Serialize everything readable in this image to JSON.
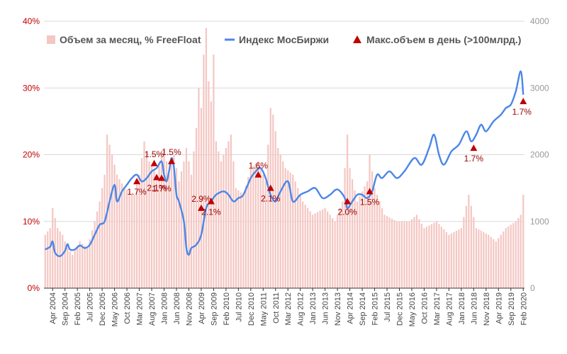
{
  "chart_data": {
    "type": "bar",
    "title": "",
    "legend_position": "top",
    "grid": true,
    "colors": {
      "bars": "#f4c7c3",
      "line": "#4a86e8",
      "markers": "#c00000",
      "left_axis_text": "#c00000",
      "right_axis_text": "#999999"
    },
    "y_left": {
      "ticks": [
        "0%",
        "10%",
        "20%",
        "30%",
        "40%"
      ],
      "lim": [
        0,
        40
      ],
      "unit": "%"
    },
    "y_right": {
      "ticks": [
        "0",
        "1000",
        "2000",
        "3000",
        "4000"
      ],
      "lim": [
        0,
        4000
      ]
    },
    "x": {
      "start": "2004-01",
      "end": "2020-02",
      "tick_every_months": 5,
      "tick_labels": [
        "Apr 2004",
        "Sep 2004",
        "Feb 2005",
        "Jul 2005",
        "Dec 2005",
        "May 2006",
        "Oct 2006",
        "Mar 2007",
        "Aug 2007",
        "Jan 2008",
        "Jun 2008",
        "Nov 2008",
        "Apr 2009",
        "Sep 2009",
        "Feb 2010",
        "Jul 2010",
        "Dec 2010",
        "May 2011",
        "Oct 2011",
        "Mar 2012",
        "Aug 2012",
        "Jan 2013",
        "Jun 2013",
        "Nov 2013",
        "Apr 2014",
        "Sep 2014",
        "Feb 2015",
        "Jul 2015",
        "Dec 2015",
        "May 2016",
        "Oct 2016",
        "Mar 2017",
        "Aug 2017",
        "Jan 2018",
        "Jun 2018",
        "Nov 2018",
        "Apr 2019",
        "Sep 2019",
        "Feb 2020"
      ]
    },
    "series": [
      {
        "name": "Объем за месяц, % FreeFloat",
        "type": "bar",
        "axis": "left",
        "anchors": [
          [
            "2004-01",
            8
          ],
          [
            "2004-03",
            9
          ],
          [
            "2004-04",
            12
          ],
          [
            "2004-06",
            9
          ],
          [
            "2004-08",
            8
          ],
          [
            "2004-10",
            6
          ],
          [
            "2004-12",
            5
          ],
          [
            "2005-03",
            7
          ],
          [
            "2005-06",
            6
          ],
          [
            "2005-09",
            10
          ],
          [
            "2005-11",
            13
          ],
          [
            "2006-01",
            17
          ],
          [
            "2006-02",
            23
          ],
          [
            "2006-04",
            20
          ],
          [
            "2006-06",
            17
          ],
          [
            "2006-09",
            15
          ],
          [
            "2007-01",
            14
          ],
          [
            "2007-03",
            17
          ],
          [
            "2007-05",
            22
          ],
          [
            "2007-07",
            19
          ],
          [
            "2007-10",
            17
          ],
          [
            "2008-01",
            21
          ],
          [
            "2008-03",
            17
          ],
          [
            "2008-05",
            20
          ],
          [
            "2008-07",
            16
          ],
          [
            "2008-09",
            19
          ],
          [
            "2008-10",
            21
          ],
          [
            "2008-12",
            17
          ],
          [
            "2009-02",
            24
          ],
          [
            "2009-03",
            30
          ],
          [
            "2009-04",
            27
          ],
          [
            "2009-05",
            35
          ],
          [
            "2009-06",
            39
          ],
          [
            "2009-07",
            31
          ],
          [
            "2009-08",
            28
          ],
          [
            "2009-09",
            35
          ],
          [
            "2009-10",
            22
          ],
          [
            "2009-12",
            19
          ],
          [
            "2010-02",
            21
          ],
          [
            "2010-04",
            23
          ],
          [
            "2010-06",
            15
          ],
          [
            "2010-09",
            14
          ],
          [
            "2010-12",
            18
          ],
          [
            "2011-03",
            19
          ],
          [
            "2011-06",
            16
          ],
          [
            "2011-08",
            27
          ],
          [
            "2011-09",
            26
          ],
          [
            "2011-11",
            21
          ],
          [
            "2012-02",
            18
          ],
          [
            "2012-05",
            17
          ],
          [
            "2012-09",
            13
          ],
          [
            "2013-01",
            11
          ],
          [
            "2013-06",
            12
          ],
          [
            "2013-10",
            10
          ],
          [
            "2014-01",
            13
          ],
          [
            "2014-03",
            23
          ],
          [
            "2014-04",
            18
          ],
          [
            "2014-07",
            13
          ],
          [
            "2014-11",
            16
          ],
          [
            "2014-12",
            20
          ],
          [
            "2015-02",
            15
          ],
          [
            "2015-06",
            11
          ],
          [
            "2015-11",
            10
          ],
          [
            "2016-04",
            10
          ],
          [
            "2016-07",
            11
          ],
          [
            "2016-10",
            9
          ],
          [
            "2017-03",
            10
          ],
          [
            "2017-08",
            8
          ],
          [
            "2018-01",
            9
          ],
          [
            "2018-04",
            14
          ],
          [
            "2018-07",
            9
          ],
          [
            "2018-12",
            8
          ],
          [
            "2019-03",
            7
          ],
          [
            "2019-07",
            9
          ],
          [
            "2019-11",
            10
          ],
          [
            "2020-01",
            11
          ],
          [
            "2020-02",
            14
          ]
        ]
      },
      {
        "name": "Индекс МосБиржи",
        "type": "line",
        "axis": "right",
        "points": [
          [
            "2004-01",
            580
          ],
          [
            "2004-03",
            620
          ],
          [
            "2004-04",
            700
          ],
          [
            "2004-05",
            530
          ],
          [
            "2004-07",
            480
          ],
          [
            "2004-09",
            560
          ],
          [
            "2004-10",
            660
          ],
          [
            "2004-11",
            580
          ],
          [
            "2005-01",
            580
          ],
          [
            "2005-03",
            640
          ],
          [
            "2005-05",
            600
          ],
          [
            "2005-07",
            650
          ],
          [
            "2005-09",
            800
          ],
          [
            "2005-11",
            950
          ],
          [
            "2006-01",
            1000
          ],
          [
            "2006-03",
            1300
          ],
          [
            "2006-05",
            1550
          ],
          [
            "2006-06",
            1300
          ],
          [
            "2006-08",
            1450
          ],
          [
            "2006-10",
            1550
          ],
          [
            "2006-12",
            1650
          ],
          [
            "2007-02",
            1700
          ],
          [
            "2007-04",
            1600
          ],
          [
            "2007-06",
            1650
          ],
          [
            "2007-08",
            1750
          ],
          [
            "2007-10",
            1800
          ],
          [
            "2007-12",
            1900
          ],
          [
            "2008-01",
            1700
          ],
          [
            "2008-02",
            1600
          ],
          [
            "2008-03",
            1750
          ],
          [
            "2008-04",
            1950
          ],
          [
            "2008-05",
            1800
          ],
          [
            "2008-06",
            1400
          ],
          [
            "2008-07",
            1300
          ],
          [
            "2008-09",
            1000
          ],
          [
            "2008-10",
            600
          ],
          [
            "2008-11",
            500
          ],
          [
            "2008-12",
            600
          ],
          [
            "2009-02",
            650
          ],
          [
            "2009-04",
            800
          ],
          [
            "2009-06",
            1200
          ],
          [
            "2009-08",
            1300
          ],
          [
            "2009-10",
            1400
          ],
          [
            "2010-01",
            1450
          ],
          [
            "2010-03",
            1400
          ],
          [
            "2010-05",
            1300
          ],
          [
            "2010-07",
            1350
          ],
          [
            "2010-09",
            1400
          ],
          [
            "2010-12",
            1650
          ],
          [
            "2011-02",
            1750
          ],
          [
            "2011-04",
            1800
          ],
          [
            "2011-06",
            1650
          ],
          [
            "2011-08",
            1400
          ],
          [
            "2011-10",
            1300
          ],
          [
            "2011-12",
            1450
          ],
          [
            "2012-03",
            1600
          ],
          [
            "2012-05",
            1300
          ],
          [
            "2012-08",
            1400
          ],
          [
            "2012-11",
            1450
          ],
          [
            "2013-02",
            1500
          ],
          [
            "2013-05",
            1350
          ],
          [
            "2013-08",
            1400
          ],
          [
            "2013-11",
            1480
          ],
          [
            "2014-02",
            1350
          ],
          [
            "2014-03",
            1200
          ],
          [
            "2014-05",
            1300
          ],
          [
            "2014-07",
            1400
          ],
          [
            "2014-09",
            1400
          ],
          [
            "2014-11",
            1350
          ],
          [
            "2015-01",
            1450
          ],
          [
            "2015-03",
            1700
          ],
          [
            "2015-05",
            1650
          ],
          [
            "2015-08",
            1750
          ],
          [
            "2015-11",
            1650
          ],
          [
            "2016-02",
            1750
          ],
          [
            "2016-06",
            1950
          ],
          [
            "2016-09",
            1850
          ],
          [
            "2016-12",
            2100
          ],
          [
            "2017-02",
            2300
          ],
          [
            "2017-04",
            2000
          ],
          [
            "2017-06",
            1850
          ],
          [
            "2017-09",
            2050
          ],
          [
            "2017-12",
            2150
          ],
          [
            "2018-03",
            2350
          ],
          [
            "2018-05",
            2200
          ],
          [
            "2018-07",
            2300
          ],
          [
            "2018-09",
            2450
          ],
          [
            "2018-11",
            2350
          ],
          [
            "2019-02",
            2500
          ],
          [
            "2019-05",
            2600
          ],
          [
            "2019-07",
            2700
          ],
          [
            "2019-09",
            2750
          ],
          [
            "2019-11",
            2950
          ],
          [
            "2020-01",
            3250
          ],
          [
            "2020-02",
            2900
          ]
        ]
      },
      {
        "name": "Макс.объем в день (>100млрд.)",
        "type": "scatter",
        "axis": "right",
        "points": [
          {
            "x": "2007-02",
            "y": 1600,
            "label": "1.7%",
            "label_pos": "below"
          },
          {
            "x": "2007-09",
            "y": 1870,
            "label": "1.5%",
            "label_pos": "above"
          },
          {
            "x": "2007-10",
            "y": 1660,
            "label": "2.1%",
            "label_pos": "below"
          },
          {
            "x": "2007-12",
            "y": 1650,
            "label": "1.7%",
            "label_pos": "below"
          },
          {
            "x": "2008-04",
            "y": 1900,
            "label": "1.5%",
            "label_pos": "above"
          },
          {
            "x": "2009-04",
            "y": 1200,
            "label": "2.9%",
            "label_pos": "above"
          },
          {
            "x": "2009-08",
            "y": 1300,
            "label": "2.1%",
            "label_pos": "below"
          },
          {
            "x": "2011-03",
            "y": 1700,
            "label": "1.6%",
            "label_pos": "above"
          },
          {
            "x": "2011-08",
            "y": 1500,
            "label": "2.1%",
            "label_pos": "below"
          },
          {
            "x": "2014-03",
            "y": 1300,
            "label": "2.0%",
            "label_pos": "below"
          },
          {
            "x": "2014-12",
            "y": 1450,
            "label": "1.5%",
            "label_pos": "below"
          },
          {
            "x": "2018-06",
            "y": 2100,
            "label": "1.7%",
            "label_pos": "below"
          },
          {
            "x": "2020-02",
            "y": 2800,
            "label": "1.7%",
            "label_pos": "below"
          }
        ]
      }
    ]
  }
}
